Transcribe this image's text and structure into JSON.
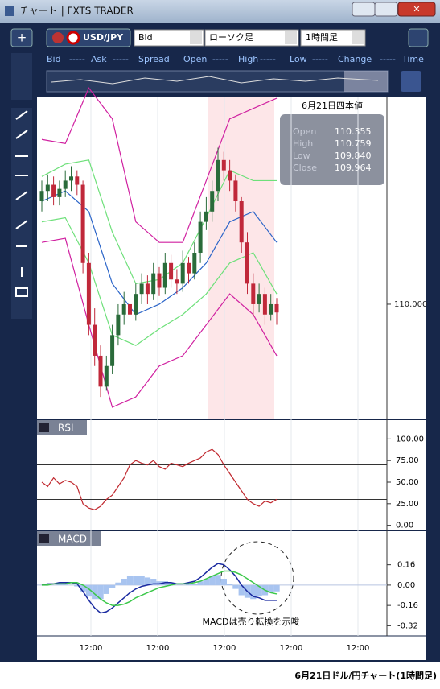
{
  "window": {
    "title": "チャート | FXTS TRADER"
  },
  "toolbar": {
    "symbol": "USD/JPY",
    "price_type": "Bid",
    "chart_type": "ローソク足",
    "timeframe": "1時間足"
  },
  "header_labels": [
    "Bid",
    "-----",
    "Ask",
    "-----",
    "Spread",
    "Open",
    "-----",
    "High",
    "-----",
    "Low",
    "-----",
    "Change",
    "-----",
    "Time"
  ],
  "info_box": {
    "title": "6月21日四本値",
    "rows": [
      {
        "label": "Open",
        "value": "110.355"
      },
      {
        "label": "High",
        "value": "110.759"
      },
      {
        "label": "Low",
        "value": "109.840"
      },
      {
        "label": "Close",
        "value": "109.964"
      }
    ]
  },
  "price_chart": {
    "type": "candlestick",
    "opens": [
      110.5,
      110.55,
      110.58,
      110.52,
      110.56,
      110.6,
      110.62,
      110.58,
      110.2,
      109.9,
      109.75,
      109.6,
      109.7,
      109.85,
      109.95,
      110.0,
      109.95,
      110.05,
      110.1,
      110.05,
      110.15,
      110.08,
      110.2,
      110.12,
      110.1,
      110.2,
      110.15,
      110.25,
      110.4,
      110.45,
      110.55,
      110.7,
      110.65,
      110.6,
      110.5,
      110.3,
      110.1,
      110.0,
      110.05,
      109.95,
      110.0
    ],
    "closes": [
      110.55,
      110.58,
      110.52,
      110.56,
      110.6,
      110.62,
      110.58,
      110.2,
      109.9,
      109.75,
      109.6,
      109.7,
      109.85,
      109.95,
      110.0,
      109.95,
      110.05,
      110.1,
      110.05,
      110.15,
      110.08,
      110.2,
      110.12,
      110.1,
      110.2,
      110.15,
      110.25,
      110.4,
      110.45,
      110.55,
      110.7,
      110.65,
      110.6,
      110.5,
      110.3,
      110.1,
      110.0,
      110.05,
      109.95,
      110.0,
      109.96
    ],
    "highs": [
      110.6,
      110.63,
      110.62,
      110.6,
      110.65,
      110.67,
      110.65,
      110.6,
      110.25,
      109.98,
      109.8,
      109.75,
      109.9,
      110.0,
      110.06,
      110.04,
      110.1,
      110.15,
      110.14,
      110.2,
      110.18,
      110.25,
      110.24,
      110.17,
      110.26,
      110.23,
      110.3,
      110.45,
      110.52,
      110.6,
      110.76,
      110.74,
      110.7,
      110.63,
      110.52,
      110.35,
      110.15,
      110.1,
      110.08,
      110.05,
      110.03
    ],
    "lows": [
      110.45,
      110.5,
      110.48,
      110.48,
      110.52,
      110.55,
      110.53,
      110.15,
      109.85,
      109.7,
      109.55,
      109.58,
      109.66,
      109.8,
      109.9,
      109.9,
      109.92,
      110.0,
      110.0,
      110.02,
      110.04,
      110.05,
      110.08,
      110.05,
      110.06,
      110.1,
      110.12,
      110.2,
      110.36,
      110.4,
      110.5,
      110.6,
      110.55,
      110.45,
      110.25,
      110.05,
      109.94,
      109.96,
      109.9,
      109.92,
      109.9
    ],
    "overlay_index": [
      0,
      4,
      8,
      12,
      16,
      20,
      24,
      28,
      32,
      36,
      40
    ],
    "overlays": [
      {
        "name": "ma",
        "color": "#2a64c8",
        "values": [
          110.5,
          110.55,
          110.45,
          110.1,
          109.95,
          110.0,
          110.08,
          110.2,
          110.4,
          110.45,
          110.3
        ]
      },
      {
        "name": "up1",
        "color": "#6ee07a",
        "values": [
          110.62,
          110.68,
          110.7,
          110.35,
          110.1,
          110.12,
          110.2,
          110.42,
          110.65,
          110.6,
          110.6
        ]
      },
      {
        "name": "dn1",
        "color": "#6ee07a",
        "values": [
          110.4,
          110.42,
          110.2,
          109.85,
          109.8,
          109.88,
          109.95,
          110.05,
          110.2,
          110.25,
          110.05
        ]
      },
      {
        "name": "up2",
        "color": "#d020a0",
        "values": [
          110.8,
          110.78,
          111.05,
          110.9,
          110.4,
          110.3,
          110.3,
          110.6,
          110.9,
          110.95,
          111.0
        ]
      },
      {
        "name": "dn2",
        "color": "#d020a0",
        "values": [
          110.3,
          110.32,
          109.9,
          109.5,
          109.55,
          109.7,
          109.75,
          109.9,
          110.05,
          109.95,
          109.75
        ]
      }
    ],
    "ylim": [
      109.445,
      111.008
    ],
    "yticks": [
      {
        "value": 110,
        "label": "110.000"
      }
    ]
  },
  "time_labels": [
    "12:00",
    "12:00",
    "12:00",
    "12:00",
    "12:00"
  ],
  "rsi": {
    "title": "RSI",
    "ylim": [
      -5,
      105
    ],
    "yticks": [
      {
        "value": 100,
        "label": "100.00"
      },
      {
        "value": 75,
        "label": "75.00"
      },
      {
        "value": 50,
        "label": "50.00"
      },
      {
        "value": 25,
        "label": "25.00"
      },
      {
        "value": 0,
        "label": "0.00"
      }
    ],
    "levels": [
      70,
      30
    ],
    "values": [
      50,
      45,
      55,
      48,
      52,
      50,
      45,
      25,
      20,
      18,
      22,
      30,
      35,
      45,
      55,
      70,
      75,
      72,
      70,
      75,
      68,
      65,
      72,
      70,
      68,
      72,
      75,
      78,
      85,
      88,
      82,
      70,
      60,
      50,
      40,
      30,
      25,
      22,
      28,
      26,
      30
    ]
  },
  "macd": {
    "title": "MACD",
    "ylim": [
      -0.4,
      0.31
    ],
    "yticks": [
      {
        "value": 0.16,
        "label": "0.16"
      },
      {
        "value": 0,
        "label": "0.00"
      },
      {
        "value": -0.16,
        "label": "-0.16"
      },
      {
        "value": -0.32,
        "label": "-0.32"
      }
    ],
    "macd": [
      0,
      0.01,
      0.01,
      0.02,
      0.02,
      0.02,
      0.01,
      -0.05,
      -0.12,
      -0.18,
      -0.22,
      -0.21,
      -0.18,
      -0.14,
      -0.1,
      -0.06,
      -0.03,
      -0.01,
      0,
      0.01,
      0.01,
      0.02,
      0.02,
      0.01,
      0.01,
      0.02,
      0.03,
      0.06,
      0.1,
      0.14,
      0.17,
      0.16,
      0.12,
      0.07,
      0,
      -0.05,
      -0.09,
      -0.1,
      -0.12,
      -0.12,
      -0.12
    ],
    "signal": [
      0,
      0,
      0.01,
      0.01,
      0.01,
      0.02,
      0.02,
      0,
      -0.03,
      -0.07,
      -0.11,
      -0.14,
      -0.16,
      -0.16,
      -0.15,
      -0.13,
      -0.1,
      -0.08,
      -0.06,
      -0.04,
      -0.02,
      -0.01,
      0,
      0.01,
      0.01,
      0.01,
      0.02,
      0.03,
      0.05,
      0.07,
      0.09,
      0.11,
      0.11,
      0.1,
      0.08,
      0.05,
      0.02,
      -0.01,
      -0.04,
      -0.06,
      -0.07
    ],
    "histogram": [
      0,
      0.01,
      0,
      0.01,
      0.01,
      0,
      -0.01,
      -0.05,
      -0.09,
      -0.11,
      -0.11,
      -0.07,
      -0.02,
      0.02,
      0.05,
      0.07,
      0.07,
      0.07,
      0.06,
      0.05,
      0.03,
      0.03,
      0.02,
      0,
      0,
      0.01,
      0.01,
      0.03,
      0.05,
      0.07,
      0.08,
      0.05,
      0.01,
      -0.03,
      -0.08,
      -0.1,
      -0.11,
      -0.09,
      -0.08,
      -0.06,
      -0.05
    ],
    "annotation": "MACDは売り転換を示唆"
  },
  "caption": "6月21日ドル/円チャート(1時間足)"
}
